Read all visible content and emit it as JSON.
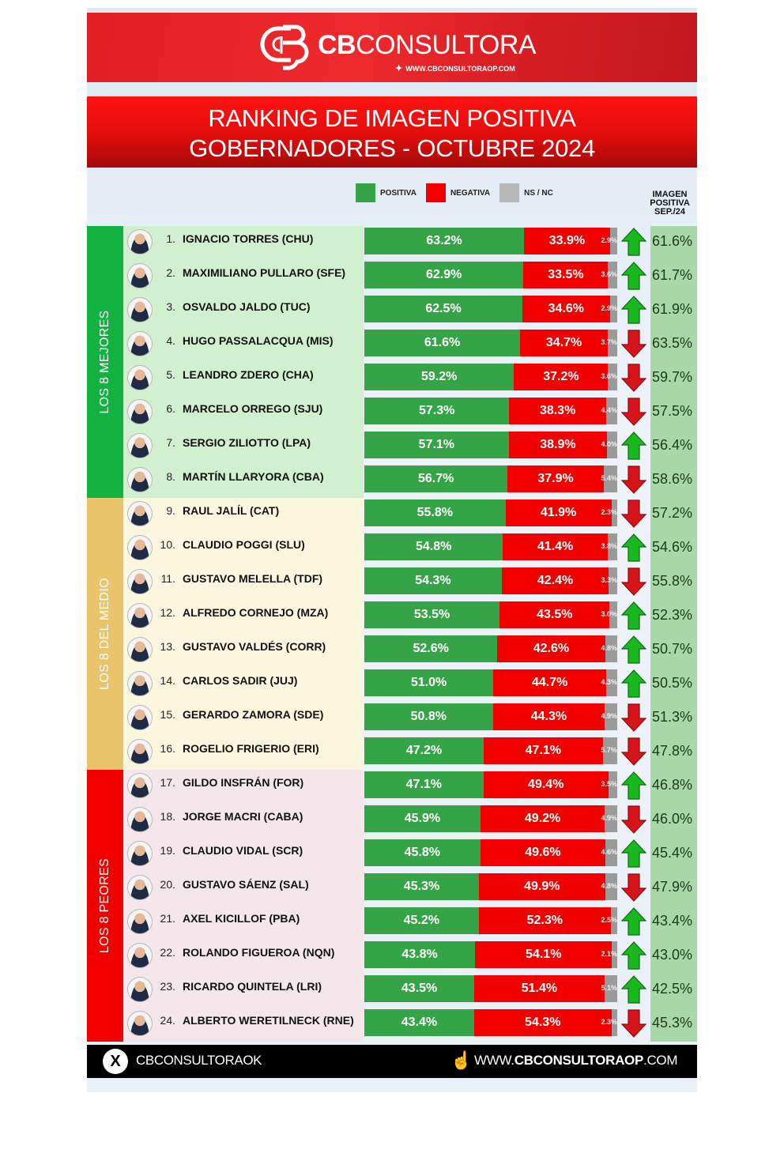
{
  "brand": {
    "name_bold": "CB",
    "name_light": "CONSULTORA",
    "url": "WWW.CBCONSULTORAOP.COM"
  },
  "title": {
    "line1": "RANKING DE IMAGEN POSITIVA",
    "line2": "GOBERNADORES - OCTUBRE 2024"
  },
  "legend": {
    "positiva": "POSITIVA",
    "negativa": "NEGATIVA",
    "nsnc": "NS / NC"
  },
  "sep_header": {
    "line1": "IMAGEN",
    "line2": "POSITIVA",
    "line3": "SEP./24"
  },
  "groups": [
    {
      "label": "LOS 8 MEJORES",
      "color": "#11b240",
      "bg": "#d0f0cf"
    },
    {
      "label": "LOS 8 DEL MEDIO",
      "color": "#e9c46a",
      "bg": "#fbf7df"
    },
    {
      "label": "LOS 8 PEORES",
      "color": "#f20000",
      "bg": "#f4e6ea"
    }
  ],
  "colors": {
    "positiva": "#35a447",
    "negativa": "#f20000",
    "nsnc": "#9a9a9a",
    "up": "#19b81f",
    "down": "#d8141b"
  },
  "chart_data": {
    "type": "bar",
    "title": "RANKING DE IMAGEN POSITIVA GOBERNADORES - OCTUBRE 2024",
    "orientation": "horizontal-stacked",
    "legend": [
      "POSITIVA",
      "NEGATIVA",
      "NS / NC"
    ],
    "categories": [
      "IGNACIO TORRES (CHU)",
      "MAXIMILIANO PULLARO (SFE)",
      "OSVALDO JALDO (TUC)",
      "HUGO PASSALACQUA (MIS)",
      "LEANDRO ZDERO (CHA)",
      "MARCELO ORREGO (SJU)",
      "SERGIO ZILIOTTO (LPA)",
      "MARTÍN LLARYORA (CBA)",
      "RAUL JALÍL (CAT)",
      "CLAUDIO POGGI (SLU)",
      "GUSTAVO MELELLA (TDF)",
      "ALFREDO CORNEJO (MZA)",
      "GUSTAVO VALDÉS (CORR)",
      "CARLOS SADIR (JUJ)",
      "GERARDO ZAMORA (SDE)",
      "ROGELIO FRIGERIO (ERI)",
      "GILDO INSFRÁN (FOR)",
      "JORGE MACRI (CABA)",
      "CLAUDIO VIDAL (SCR)",
      "GUSTAVO SÁENZ (SAL)",
      "AXEL KICILLOF (PBA)",
      "ROLANDO FIGUEROA (NQN)",
      "RICARDO QUINTELA (LRI)",
      "ALBERTO WERETILNECK (RNE)"
    ],
    "series": [
      {
        "name": "POSITIVA",
        "values": [
          63.2,
          62.9,
          62.5,
          61.6,
          59.2,
          57.3,
          57.1,
          56.7,
          55.8,
          54.8,
          54.3,
          53.5,
          52.6,
          51.0,
          50.8,
          47.2,
          47.1,
          45.9,
          45.8,
          45.3,
          45.2,
          43.8,
          43.5,
          43.4
        ]
      },
      {
        "name": "NEGATIVA",
        "values": [
          33.9,
          33.5,
          34.6,
          34.7,
          37.2,
          38.3,
          38.9,
          37.9,
          41.9,
          41.4,
          42.4,
          43.5,
          42.6,
          44.7,
          44.3,
          47.1,
          49.4,
          49.2,
          49.6,
          49.9,
          52.3,
          54.1,
          51.4,
          54.3
        ]
      },
      {
        "name": "NS / NC",
        "values": [
          2.9,
          3.6,
          2.9,
          3.7,
          3.6,
          4.4,
          4.0,
          5.4,
          2.3,
          3.8,
          3.3,
          3.0,
          4.8,
          4.3,
          4.9,
          5.7,
          3.5,
          4.9,
          4.6,
          4.8,
          2.5,
          2.1,
          5.1,
          2.3
        ]
      },
      {
        "name": "IMAGEN POSITIVA SEP./24",
        "values": [
          61.6,
          61.7,
          61.9,
          63.5,
          59.7,
          57.5,
          56.4,
          58.6,
          57.2,
          54.6,
          55.8,
          52.3,
          50.7,
          50.5,
          51.3,
          47.8,
          46.8,
          46.0,
          45.4,
          47.9,
          43.4,
          43.0,
          42.5,
          45.3
        ]
      }
    ],
    "trend": [
      "up",
      "up",
      "up",
      "down",
      "down",
      "down",
      "up",
      "down",
      "down",
      "up",
      "down",
      "up",
      "up",
      "up",
      "down",
      "down",
      "up",
      "down",
      "up",
      "down",
      "up",
      "up",
      "up",
      "down"
    ],
    "xlim": [
      0,
      100
    ],
    "grid": false,
    "legend_position": "top"
  },
  "rows": [
    {
      "rank": "1.",
      "name": "IGNACIO TORRES (CHU)",
      "pos": 63.2,
      "neg": 33.9,
      "ns": 2.9,
      "pos_label": "63.2%",
      "neg_label": "33.9%",
      "ns_label": "2.9%",
      "trend": "up",
      "sep": "61.6%"
    },
    {
      "rank": "2.",
      "name": "MAXIMILIANO PULLARO (SFE)",
      "pos": 62.9,
      "neg": 33.5,
      "ns": 3.6,
      "pos_label": "62.9%",
      "neg_label": "33.5%",
      "ns_label": "3.6%",
      "trend": "up",
      "sep": "61.7%"
    },
    {
      "rank": "3.",
      "name": "OSVALDO JALDO (TUC)",
      "pos": 62.5,
      "neg": 34.6,
      "ns": 2.9,
      "pos_label": "62.5%",
      "neg_label": "34.6%",
      "ns_label": "2.9%",
      "trend": "up",
      "sep": "61.9%"
    },
    {
      "rank": "4.",
      "name": "HUGO PASSALACQUA (MIS)",
      "pos": 61.6,
      "neg": 34.7,
      "ns": 3.7,
      "pos_label": "61.6%",
      "neg_label": "34.7%",
      "ns_label": "3.7%",
      "trend": "down",
      "sep": "63.5%"
    },
    {
      "rank": "5.",
      "name": "LEANDRO ZDERO (CHA)",
      "pos": 59.2,
      "neg": 37.2,
      "ns": 3.6,
      "pos_label": "59.2%",
      "neg_label": "37.2%",
      "ns_label": "3.6%",
      "trend": "down",
      "sep": "59.7%"
    },
    {
      "rank": "6.",
      "name": "MARCELO ORREGO (SJU)",
      "pos": 57.3,
      "neg": 38.3,
      "ns": 4.4,
      "pos_label": "57.3%",
      "neg_label": "38.3%",
      "ns_label": "4.4%",
      "trend": "down",
      "sep": "57.5%"
    },
    {
      "rank": "7.",
      "name": "SERGIO ZILIOTTO (LPA)",
      "pos": 57.1,
      "neg": 38.9,
      "ns": 4.0,
      "pos_label": "57.1%",
      "neg_label": "38.9%",
      "ns_label": "4.0%",
      "trend": "up",
      "sep": "56.4%"
    },
    {
      "rank": "8.",
      "name": "MARTÍN LLARYORA (CBA)",
      "pos": 56.7,
      "neg": 37.9,
      "ns": 5.4,
      "pos_label": "56.7%",
      "neg_label": "37.9%",
      "ns_label": "5.4%",
      "trend": "down",
      "sep": "58.6%"
    },
    {
      "rank": "9.",
      "name": "RAUL JALÍL (CAT)",
      "pos": 55.8,
      "neg": 41.9,
      "ns": 2.3,
      "pos_label": "55.8%",
      "neg_label": "41.9%",
      "ns_label": "2.3%",
      "trend": "down",
      "sep": "57.2%"
    },
    {
      "rank": "10.",
      "name": "CLAUDIO POGGI (SLU)",
      "pos": 54.8,
      "neg": 41.4,
      "ns": 3.8,
      "pos_label": "54.8%",
      "neg_label": "41.4%",
      "ns_label": "3.8%",
      "trend": "up",
      "sep": "54.6%"
    },
    {
      "rank": "11.",
      "name": "GUSTAVO MELELLA (TDF)",
      "pos": 54.3,
      "neg": 42.4,
      "ns": 3.3,
      "pos_label": "54.3%",
      "neg_label": "42.4%",
      "ns_label": "3.3%",
      "trend": "down",
      "sep": "55.8%"
    },
    {
      "rank": "12.",
      "name": "ALFREDO CORNEJO (MZA)",
      "pos": 53.5,
      "neg": 43.5,
      "ns": 3.0,
      "pos_label": "53.5%",
      "neg_label": "43.5%",
      "ns_label": "3.0%",
      "trend": "up",
      "sep": "52.3%"
    },
    {
      "rank": "13.",
      "name": "GUSTAVO VALDÉS (CORR)",
      "pos": 52.6,
      "neg": 42.6,
      "ns": 4.8,
      "pos_label": "52.6%",
      "neg_label": "42.6%",
      "ns_label": "4.8%",
      "trend": "up",
      "sep": "50.7%"
    },
    {
      "rank": "14.",
      "name": "CARLOS SADIR (JUJ)",
      "pos": 51.0,
      "neg": 44.7,
      "ns": 4.3,
      "pos_label": "51.0%",
      "neg_label": "44.7%",
      "ns_label": "4.3%",
      "trend": "up",
      "sep": "50.5%"
    },
    {
      "rank": "15.",
      "name": "GERARDO ZAMORA (SDE)",
      "pos": 50.8,
      "neg": 44.3,
      "ns": 4.9,
      "pos_label": "50.8%",
      "neg_label": "44.3%",
      "ns_label": "4.9%",
      "trend": "down",
      "sep": "51.3%"
    },
    {
      "rank": "16.",
      "name": "ROGELIO FRIGERIO (ERI)",
      "pos": 47.2,
      "neg": 47.1,
      "ns": 5.7,
      "pos_label": "47.2%",
      "neg_label": "47.1%",
      "ns_label": "5.7%",
      "trend": "down",
      "sep": "47.8%"
    },
    {
      "rank": "17.",
      "name": "GILDO INSFRÁN (FOR)",
      "pos": 47.1,
      "neg": 49.4,
      "ns": 3.5,
      "pos_label": "47.1%",
      "neg_label": "49.4%",
      "ns_label": "3.5%",
      "trend": "up",
      "sep": "46.8%"
    },
    {
      "rank": "18.",
      "name": "JORGE MACRI (CABA)",
      "pos": 45.9,
      "neg": 49.2,
      "ns": 4.9,
      "pos_label": "45.9%",
      "neg_label": "49.2%",
      "ns_label": "4.9%",
      "trend": "down",
      "sep": "46.0%"
    },
    {
      "rank": "19.",
      "name": "CLAUDIO VIDAL (SCR)",
      "pos": 45.8,
      "neg": 49.6,
      "ns": 4.6,
      "pos_label": "45.8%",
      "neg_label": "49.6%",
      "ns_label": "4.6%",
      "trend": "up",
      "sep": "45.4%"
    },
    {
      "rank": "20.",
      "name": "GUSTAVO SÁENZ (SAL)",
      "pos": 45.3,
      "neg": 49.9,
      "ns": 4.8,
      "pos_label": "45.3%",
      "neg_label": "49.9%",
      "ns_label": "4.8%",
      "trend": "down",
      "sep": "47.9%"
    },
    {
      "rank": "21.",
      "name": "AXEL KICILLOF (PBA)",
      "pos": 45.2,
      "neg": 52.3,
      "ns": 2.5,
      "pos_label": "45.2%",
      "neg_label": "52.3%",
      "ns_label": "2.5%",
      "trend": "up",
      "sep": "43.4%"
    },
    {
      "rank": "22.",
      "name": "ROLANDO FIGUEROA (NQN)",
      "pos": 43.8,
      "neg": 54.1,
      "ns": 2.1,
      "pos_label": "43.8%",
      "neg_label": "54.1%",
      "ns_label": "2.1%",
      "trend": "up",
      "sep": "43.0%"
    },
    {
      "rank": "23.",
      "name": "RICARDO QUINTELA (LRI)",
      "pos": 43.5,
      "neg": 51.4,
      "ns": 5.1,
      "pos_label": "43.5%",
      "neg_label": "51.4%",
      "ns_label": "5.1%",
      "trend": "up",
      "sep": "42.5%"
    },
    {
      "rank": "24.",
      "name": "ALBERTO WERETILNECK (RNE)",
      "pos": 43.4,
      "neg": 54.3,
      "ns": 2.3,
      "pos_label": "43.4%",
      "neg_label": "54.3%",
      "ns_label": "2.3%",
      "trend": "down",
      "sep": "45.3%"
    }
  ],
  "footer": {
    "x_handle": "CBCONSULTORAOK",
    "url_prefix": "WWW.",
    "url_bold": "CBCONSULTORAOP",
    "url_suffix": ".COM"
  }
}
